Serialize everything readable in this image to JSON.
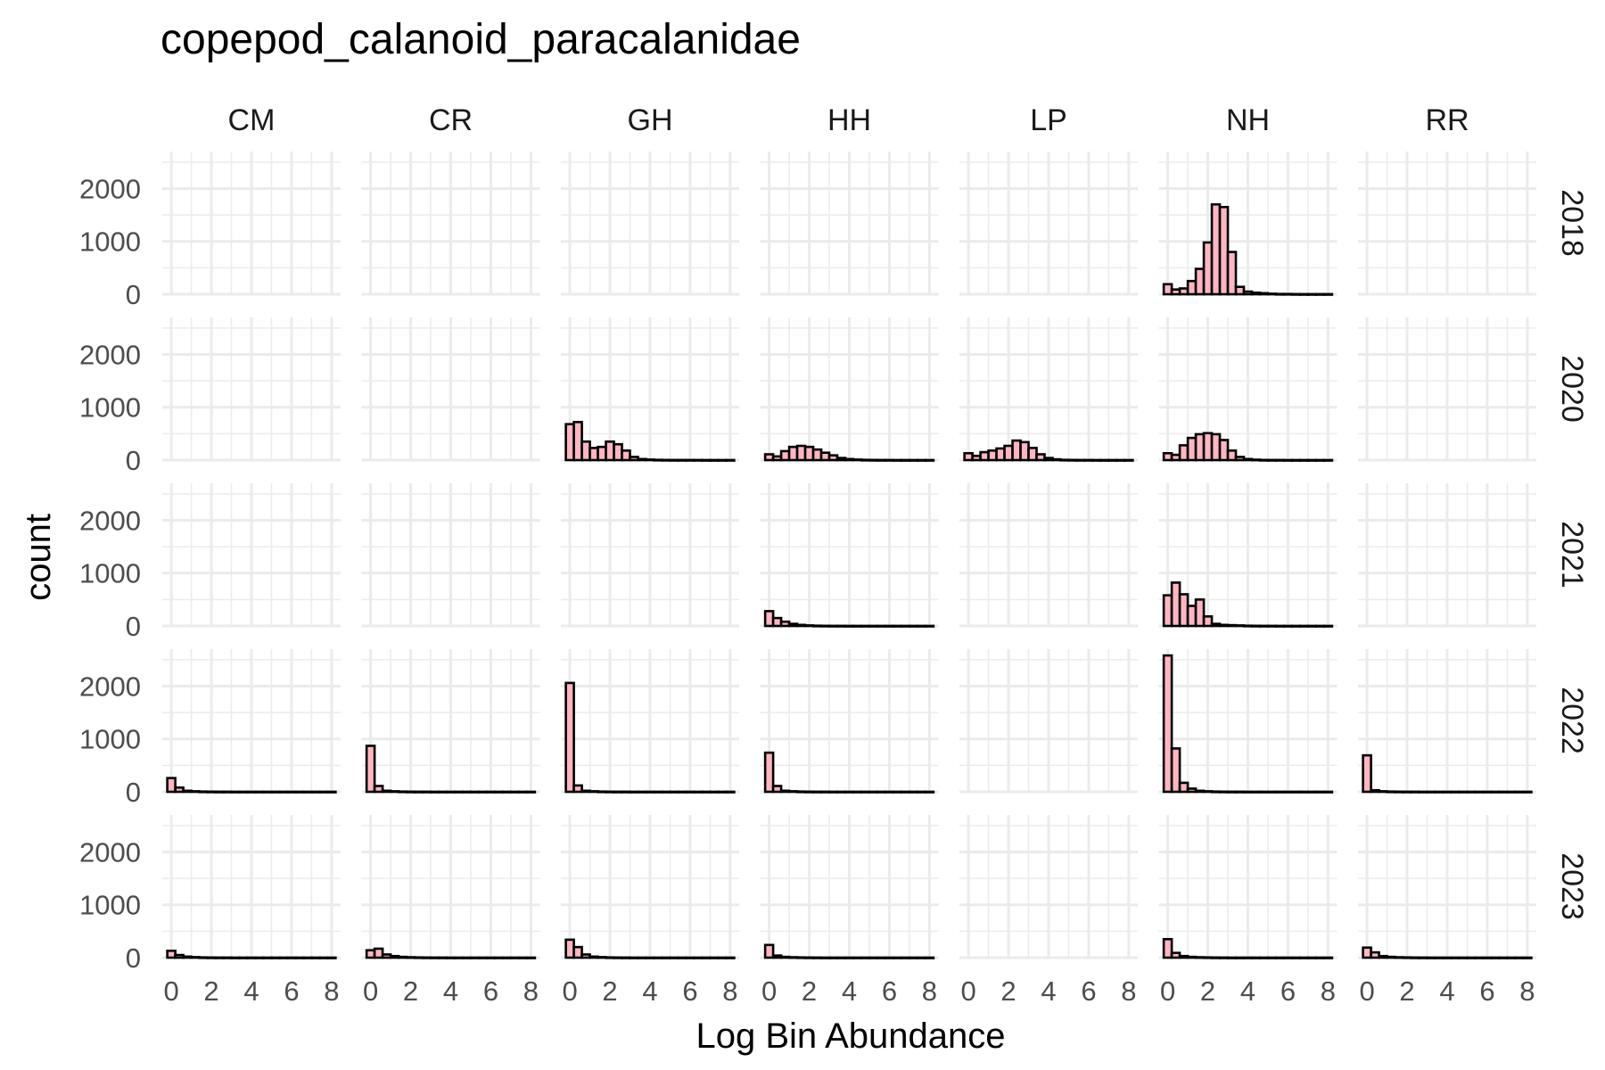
{
  "chart_data": {
    "type": "histogram",
    "facet_layout": "grid",
    "title": "copepod_calanoid_paracalanidae",
    "xlabel": "Log Bin Abundance",
    "ylabel": "count",
    "columns": [
      "CM",
      "CR",
      "GH",
      "HH",
      "LP",
      "NH",
      "RR"
    ],
    "rows": [
      "2018",
      "2020",
      "2021",
      "2022",
      "2023"
    ],
    "xlim": [
      -0.45,
      8.45
    ],
    "ylim": [
      0,
      2700
    ],
    "x_ticks": [
      0,
      2,
      4,
      6,
      8
    ],
    "y_ticks": [
      0,
      1000,
      2000
    ],
    "bin_width": 0.4,
    "bin_start": -0.2,
    "bar_fill": "#ffb6c1",
    "bar_stroke": "#000000",
    "grid": true,
    "grid_color": "#ebebeb",
    "panels": {
      "2018": {
        "CM": [],
        "CR": [],
        "GH": [],
        "HH": [],
        "LP": [],
        "NH": [
          190,
          90,
          110,
          250,
          480,
          980,
          1700,
          1650,
          800,
          140,
          50,
          30,
          20,
          10,
          5,
          5,
          3,
          2,
          2,
          2,
          2
        ],
        "RR": []
      },
      "2020": {
        "CM": [],
        "CR": [],
        "GH": [
          680,
          720,
          350,
          230,
          250,
          350,
          300,
          180,
          60,
          20,
          10,
          5,
          3,
          2,
          2,
          2,
          2,
          1,
          1,
          1,
          1
        ],
        "HH": [
          110,
          70,
          170,
          250,
          270,
          250,
          200,
          140,
          90,
          40,
          20,
          10,
          5,
          3,
          2,
          2,
          1,
          1,
          1,
          1,
          1
        ],
        "LP": [
          130,
          80,
          150,
          180,
          220,
          270,
          370,
          340,
          230,
          110,
          40,
          15,
          5,
          3,
          2,
          2,
          1,
          1,
          1,
          1,
          1
        ],
        "NH": [
          130,
          100,
          280,
          420,
          490,
          510,
          490,
          380,
          180,
          60,
          20,
          8,
          3,
          2,
          2,
          1,
          1,
          1,
          1,
          1,
          1
        ],
        "RR": []
      },
      "2021": {
        "CM": [],
        "CR": [],
        "GH": [],
        "HH": [
          280,
          150,
          80,
          40,
          20,
          10,
          5,
          3,
          2,
          2,
          1,
          1,
          1,
          1,
          1,
          1,
          1,
          1,
          1,
          1,
          1
        ],
        "LP": [],
        "NH": [
          580,
          820,
          600,
          380,
          500,
          180,
          40,
          20,
          15,
          10,
          5,
          3,
          2,
          2,
          1,
          1,
          1,
          1,
          1,
          1,
          1
        ],
        "RR": []
      },
      "2022": {
        "CM": [
          260,
          80,
          20,
          10,
          5,
          3,
          2,
          2,
          1,
          1,
          1,
          1,
          1,
          1,
          1,
          1,
          1,
          1,
          1,
          1,
          1
        ],
        "CR": [
          870,
          110,
          20,
          10,
          5,
          3,
          2,
          2,
          1,
          1,
          1,
          1,
          1,
          1,
          1,
          1,
          1,
          1,
          1,
          1,
          1
        ],
        "GH": [
          2060,
          120,
          20,
          10,
          5,
          3,
          2,
          2,
          1,
          1,
          1,
          1,
          1,
          1,
          1,
          1,
          1,
          1,
          1,
          1,
          1
        ],
        "HH": [
          740,
          110,
          20,
          10,
          5,
          3,
          2,
          2,
          1,
          1,
          1,
          1,
          1,
          1,
          1,
          1,
          1,
          1,
          1,
          1,
          1
        ],
        "LP": [],
        "NH": [
          2580,
          820,
          170,
          60,
          20,
          10,
          5,
          3,
          2,
          2,
          1,
          1,
          1,
          1,
          1,
          1,
          1,
          1,
          1,
          1,
          1
        ],
        "RR": [
          690,
          30,
          10,
          5,
          3,
          2,
          2,
          1,
          1,
          1,
          1,
          1,
          1,
          1,
          1,
          1,
          1,
          1,
          1,
          1,
          1
        ]
      },
      "2023": {
        "CM": [
          130,
          50,
          20,
          10,
          5,
          3,
          2,
          2,
          1,
          1,
          1,
          1,
          1,
          1,
          1,
          1,
          1,
          1,
          1,
          1,
          1
        ],
        "CR": [
          140,
          170,
          60,
          30,
          15,
          8,
          5,
          3,
          2,
          2,
          1,
          1,
          1,
          1,
          1,
          1,
          1,
          1,
          1,
          1,
          1
        ],
        "GH": [
          340,
          200,
          60,
          20,
          10,
          5,
          3,
          2,
          1,
          1,
          1,
          1,
          1,
          1,
          1,
          1,
          1,
          1,
          1,
          1,
          1
        ],
        "HH": [
          240,
          40,
          15,
          8,
          5,
          3,
          2,
          1,
          1,
          1,
          1,
          1,
          1,
          1,
          1,
          1,
          1,
          1,
          1,
          1,
          1
        ],
        "LP": [],
        "NH": [
          350,
          90,
          30,
          15,
          8,
          5,
          3,
          2,
          1,
          1,
          1,
          1,
          1,
          1,
          1,
          1,
          1,
          1,
          1,
          1,
          1
        ],
        "RR": [
          190,
          100,
          30,
          15,
          8,
          5,
          3,
          2,
          1,
          1,
          1,
          1,
          1,
          1,
          1,
          1,
          1,
          1,
          1,
          1,
          1
        ]
      }
    }
  }
}
